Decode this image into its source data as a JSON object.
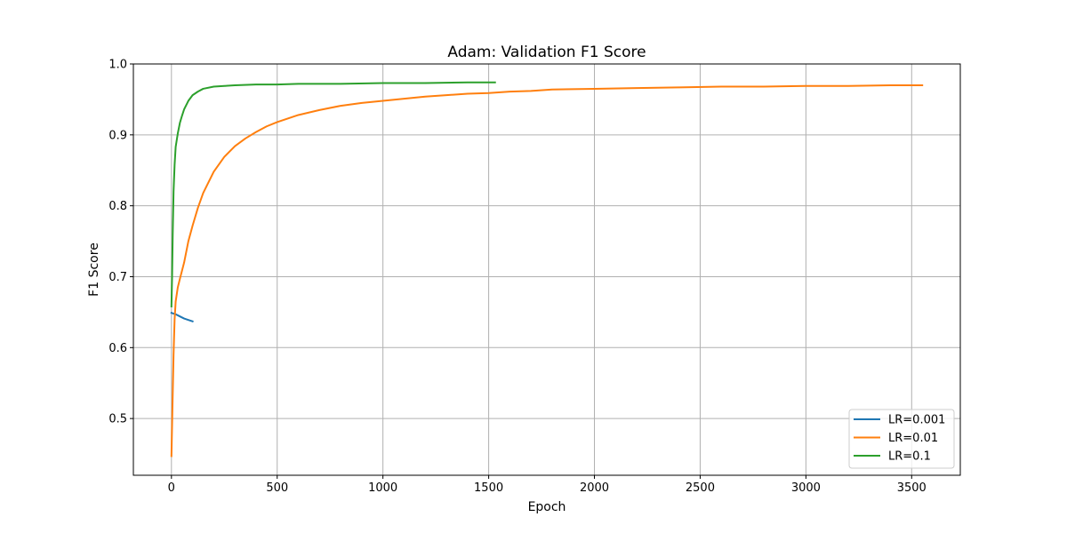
{
  "chart_data": {
    "type": "line",
    "title": "Adam: Validation F1 Score",
    "xlabel": "Epoch",
    "ylabel": "F1 Score",
    "xlim": [
      -180,
      3730
    ],
    "ylim": [
      0.42,
      1.0
    ],
    "xticks": [
      0,
      500,
      1000,
      1500,
      2000,
      2500,
      3000,
      3500
    ],
    "yticks": [
      0.5,
      0.6,
      0.7,
      0.8,
      0.9,
      1.0
    ],
    "ytick_labels": [
      "0.5",
      "0.6",
      "0.7",
      "0.8",
      "0.9",
      "1.0"
    ],
    "grid": true,
    "legend_position": "lower-right",
    "series": [
      {
        "name": "LR=0.001",
        "color": "#1f77b4",
        "x": [
          0,
          20,
          40,
          60,
          80,
          100
        ],
        "y": [
          0.649,
          0.647,
          0.644,
          0.641,
          0.639,
          0.637
        ]
      },
      {
        "name": "LR=0.01",
        "color": "#ff7f0e",
        "x": [
          0,
          5,
          10,
          15,
          20,
          30,
          40,
          60,
          80,
          100,
          125,
          150,
          200,
          250,
          300,
          350,
          400,
          450,
          500,
          600,
          700,
          800,
          900,
          1000,
          1100,
          1200,
          1300,
          1400,
          1500,
          1600,
          1700,
          1800,
          2000,
          2200,
          2400,
          2600,
          2800,
          3000,
          3200,
          3400,
          3550
        ],
        "y": [
          0.447,
          0.52,
          0.59,
          0.64,
          0.665,
          0.685,
          0.697,
          0.72,
          0.75,
          0.772,
          0.797,
          0.818,
          0.848,
          0.869,
          0.884,
          0.895,
          0.904,
          0.912,
          0.918,
          0.928,
          0.935,
          0.941,
          0.945,
          0.948,
          0.951,
          0.954,
          0.956,
          0.958,
          0.959,
          0.961,
          0.962,
          0.964,
          0.965,
          0.966,
          0.967,
          0.968,
          0.968,
          0.969,
          0.969,
          0.97,
          0.97
        ]
      },
      {
        "name": "LR=0.1",
        "color": "#2ca02c",
        "x": [
          0,
          3,
          6,
          10,
          15,
          20,
          30,
          40,
          50,
          60,
          80,
          100,
          125,
          150,
          200,
          250,
          300,
          400,
          500,
          600,
          800,
          1000,
          1200,
          1400,
          1530
        ],
        "y": [
          0.658,
          0.7,
          0.76,
          0.82,
          0.858,
          0.883,
          0.902,
          0.917,
          0.927,
          0.936,
          0.948,
          0.956,
          0.961,
          0.965,
          0.968,
          0.969,
          0.97,
          0.971,
          0.971,
          0.972,
          0.972,
          0.973,
          0.973,
          0.974,
          0.974
        ]
      }
    ]
  }
}
